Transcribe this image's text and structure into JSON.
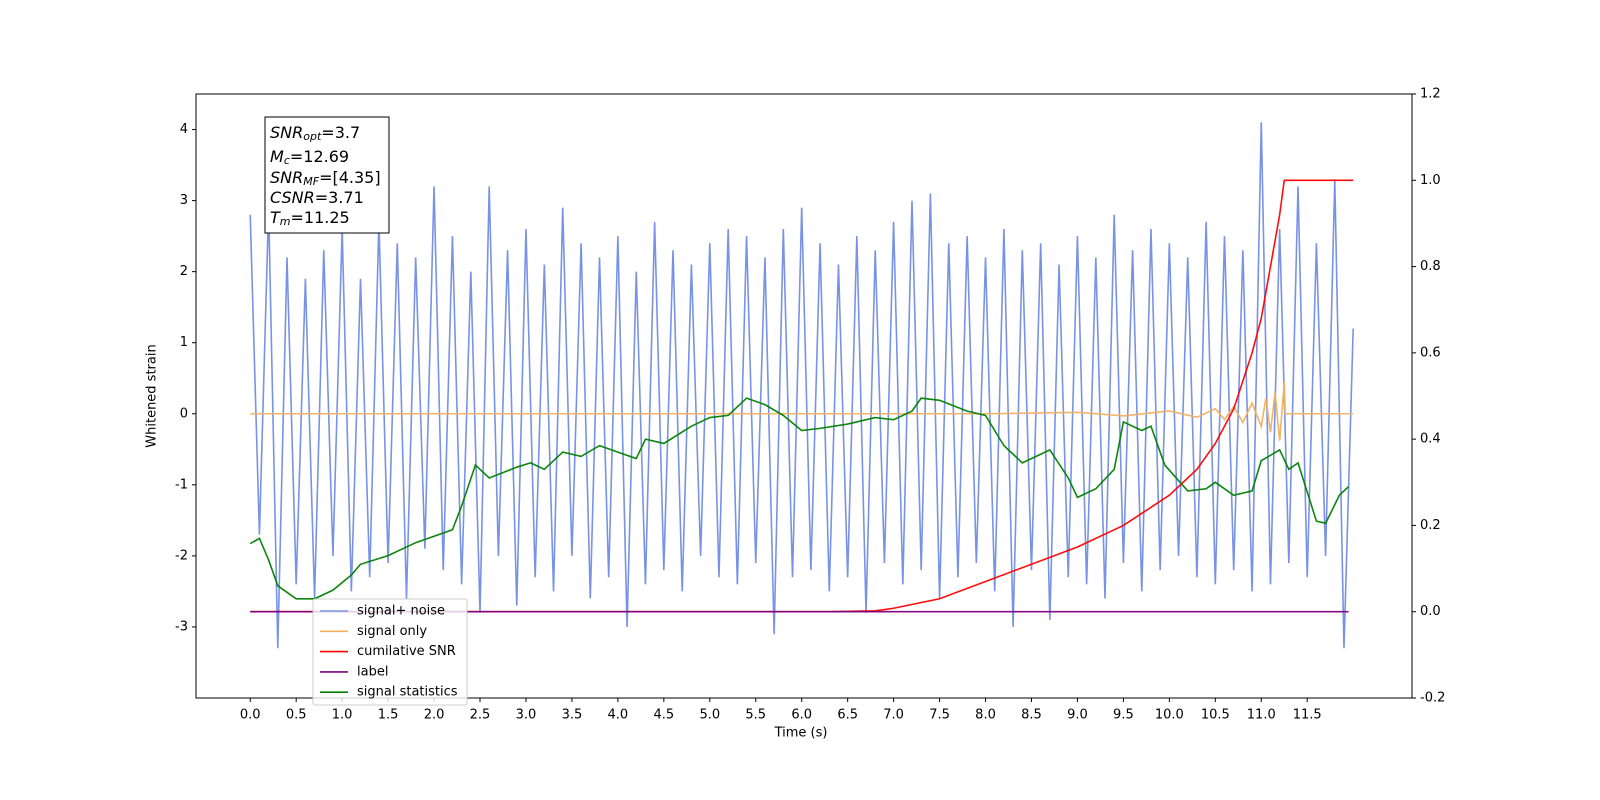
{
  "chart_data": {
    "type": "line",
    "xlabel": "Time (s)",
    "ylabel": "Whitened strain",
    "xlim": [
      -0.59,
      12.64
    ],
    "ylim": [
      -4.0,
      4.5
    ],
    "y2lim": [
      -0.2,
      1.2
    ],
    "xticks": [
      {
        "value": 0,
        "label": "0.0"
      },
      0.5,
      {
        "value": 1,
        "label": "1.0"
      },
      1.5,
      {
        "value": 2,
        "label": "2.0"
      },
      2.5,
      {
        "value": 3,
        "label": "3.0"
      },
      3.5,
      {
        "value": 4,
        "label": "4.0"
      },
      4.5,
      {
        "value": 5,
        "label": "5.0"
      },
      5.5,
      {
        "value": 6,
        "label": "6.0"
      },
      6.5,
      {
        "value": 7,
        "label": "7.0"
      },
      7.5,
      {
        "value": 8,
        "label": "8.0"
      },
      8.5,
      {
        "value": 9,
        "label": "9.0"
      },
      9.5,
      {
        "value": 10,
        "label": "10.0"
      },
      10.5,
      {
        "value": 11,
        "label": "11.0"
      },
      11.5
    ],
    "yticks": [
      -3,
      -2,
      -1,
      0,
      1,
      2,
      3,
      4
    ],
    "y2ticks": [
      -0.2,
      {
        "value": 0,
        "label": "0.0"
      },
      0.2,
      0.4,
      0.6,
      0.8,
      {
        "value": 1,
        "label": "1.0"
      },
      1.2
    ],
    "legend": "lower left",
    "annotations": [
      [
        "SNR",
        "opt",
        "=3.7"
      ],
      [
        "M",
        "c",
        "=12.69"
      ],
      [
        "SNR",
        "MF",
        "=[4.35]"
      ],
      [
        "CSNR",
        "",
        "=3.71"
      ],
      [
        "T",
        "m",
        "=11.25"
      ]
    ],
    "series": [
      {
        "name": "signal+ noise",
        "color": "#7893e6",
        "axis": "y",
        "x": [
          0,
          0.1,
          0.2,
          0.3,
          0.4,
          0.5,
          0.6,
          0.7,
          0.8,
          0.9,
          1,
          1.1,
          1.2,
          1.3,
          1.4,
          1.5,
          1.6,
          1.7,
          1.8,
          1.9,
          2,
          2.1,
          2.2,
          2.3,
          2.4,
          2.5,
          2.6,
          2.7,
          2.8,
          2.9,
          3,
          3.1,
          3.2,
          3.3,
          3.4,
          3.5,
          3.6,
          3.7,
          3.8,
          3.9,
          4,
          4.1,
          4.2,
          4.3,
          4.4,
          4.5,
          4.6,
          4.7,
          4.8,
          4.9,
          5,
          5.1,
          5.2,
          5.3,
          5.4,
          5.5,
          5.6,
          5.7,
          5.8,
          5.9,
          6,
          6.1,
          6.2,
          6.3,
          6.4,
          6.5,
          6.6,
          6.7,
          6.8,
          6.9,
          7,
          7.1,
          7.2,
          7.3,
          7.4,
          7.5,
          7.6,
          7.7,
          7.8,
          7.9,
          8,
          8.1,
          8.2,
          8.3,
          8.4,
          8.5,
          8.6,
          8.7,
          8.8,
          8.9,
          9,
          9.1,
          9.2,
          9.3,
          9.4,
          9.5,
          9.6,
          9.7,
          9.8,
          9.9,
          10,
          10.1,
          10.2,
          10.3,
          10.4,
          10.5,
          10.6,
          10.7,
          10.8,
          10.9,
          11,
          11.1,
          11.2,
          11.3,
          11.4,
          11.5,
          11.6,
          11.7,
          11.8,
          11.9,
          12
        ],
        "values": [
          2.8,
          -1.7,
          2.9,
          -3.3,
          2.2,
          -2.4,
          1.9,
          -2.6,
          2.3,
          -2.0,
          2.6,
          -2.5,
          1.9,
          -2.3,
          2.7,
          -2.1,
          2.4,
          -2.6,
          2.2,
          -1.9,
          3.2,
          -2.2,
          2.5,
          -2.4,
          2.0,
          -2.8,
          3.2,
          -2.0,
          2.3,
          -2.7,
          2.6,
          -2.3,
          2.1,
          -2.5,
          2.9,
          -2.0,
          2.4,
          -2.6,
          2.2,
          -2.3,
          2.5,
          -3.0,
          2.0,
          -2.4,
          2.7,
          -2.2,
          2.3,
          -2.5,
          2.1,
          -2.0,
          2.4,
          -2.3,
          2.6,
          -2.4,
          2.5,
          -2.1,
          2.2,
          -3.1,
          2.6,
          -2.3,
          2.9,
          -2.2,
          2.4,
          -2.5,
          2.1,
          -2.3,
          2.5,
          -2.8,
          2.3,
          -2.1,
          2.7,
          -2.4,
          3.0,
          -2.2,
          3.1,
          -2.6,
          2.4,
          -2.3,
          2.5,
          -2.1,
          2.2,
          -2.5,
          2.6,
          -3.0,
          2.3,
          -2.2,
          2.4,
          -2.9,
          2.1,
          -2.3,
          2.5,
          -2.4,
          2.2,
          -2.6,
          2.8,
          -2.1,
          2.3,
          -2.5,
          2.6,
          -2.2,
          2.4,
          -2.0,
          2.2,
          -2.3,
          2.7,
          -2.4,
          2.5,
          -2.2,
          2.3,
          -2.5,
          4.1,
          -2.4,
          2.6,
          -2.1,
          3.2,
          -2.3,
          2.4,
          -2.0,
          3.3,
          -3.3,
          1.2
        ]
      },
      {
        "name": "signal only",
        "color": "#f0b060",
        "axis": "y",
        "x": [
          0,
          8,
          9,
          9.5,
          10,
          10.3,
          10.5,
          10.6,
          10.7,
          10.8,
          10.9,
          11,
          11.05,
          11.1,
          11.15,
          11.2,
          11.25,
          11.26,
          12
        ],
        "values": [
          0,
          0,
          0.02,
          -0.03,
          0.04,
          -0.05,
          0.07,
          -0.08,
          0.1,
          -0.12,
          0.15,
          -0.18,
          0.22,
          -0.26,
          0.3,
          -0.38,
          0.45,
          0,
          0
        ]
      },
      {
        "name": "cumilative SNR",
        "color": "#ff0000",
        "axis": "y2",
        "x": [
          0,
          6.3,
          6.8,
          7,
          7.5,
          8,
          8.5,
          9,
          9.5,
          10,
          10.3,
          10.5,
          10.7,
          10.9,
          11,
          11.1,
          11.2,
          11.25,
          12
        ],
        "values": [
          0,
          0,
          0.002,
          0.008,
          0.03,
          0.07,
          0.11,
          0.15,
          0.2,
          0.27,
          0.33,
          0.39,
          0.47,
          0.6,
          0.68,
          0.8,
          0.92,
          1.0,
          1.0
        ]
      },
      {
        "name": "label",
        "color": "#800080",
        "axis": "y2",
        "x": [
          0,
          11.95
        ],
        "values": [
          0,
          0
        ]
      },
      {
        "name": "signal statistics",
        "color": "#008000",
        "axis": "y2",
        "x": [
          0,
          0.1,
          0.2,
          0.3,
          0.5,
          0.7,
          0.9,
          1.1,
          1.2,
          1.5,
          1.8,
          2,
          2.2,
          2.3,
          2.45,
          2.6,
          2.9,
          3.05,
          3.2,
          3.4,
          3.6,
          3.8,
          4,
          4.2,
          4.3,
          4.5,
          4.8,
          5,
          5.2,
          5.4,
          5.6,
          5.8,
          6,
          6.2,
          6.5,
          6.8,
          7,
          7.2,
          7.3,
          7.5,
          7.8,
          8,
          8.2,
          8.4,
          8.7,
          8.9,
          9,
          9.2,
          9.4,
          9.5,
          9.7,
          9.8,
          9.95,
          10.2,
          10.4,
          10.5,
          10.7,
          10.9,
          11,
          11.2,
          11.3,
          11.4,
          11.6,
          11.7,
          11.85,
          11.95
        ],
        "values": [
          0.158,
          0.17,
          0.12,
          0.06,
          0.03,
          0.03,
          0.05,
          0.085,
          0.11,
          0.13,
          0.16,
          0.175,
          0.19,
          0.245,
          0.34,
          0.31,
          0.335,
          0.345,
          0.33,
          0.37,
          0.36,
          0.385,
          0.37,
          0.355,
          0.4,
          0.39,
          0.43,
          0.45,
          0.455,
          0.495,
          0.48,
          0.455,
          0.42,
          0.425,
          0.435,
          0.45,
          0.445,
          0.465,
          0.495,
          0.49,
          0.465,
          0.455,
          0.385,
          0.345,
          0.375,
          0.31,
          0.265,
          0.285,
          0.33,
          0.44,
          0.42,
          0.43,
          0.34,
          0.28,
          0.285,
          0.3,
          0.27,
          0.28,
          0.35,
          0.375,
          0.33,
          0.345,
          0.21,
          0.205,
          0.27,
          0.29
        ]
      }
    ]
  }
}
